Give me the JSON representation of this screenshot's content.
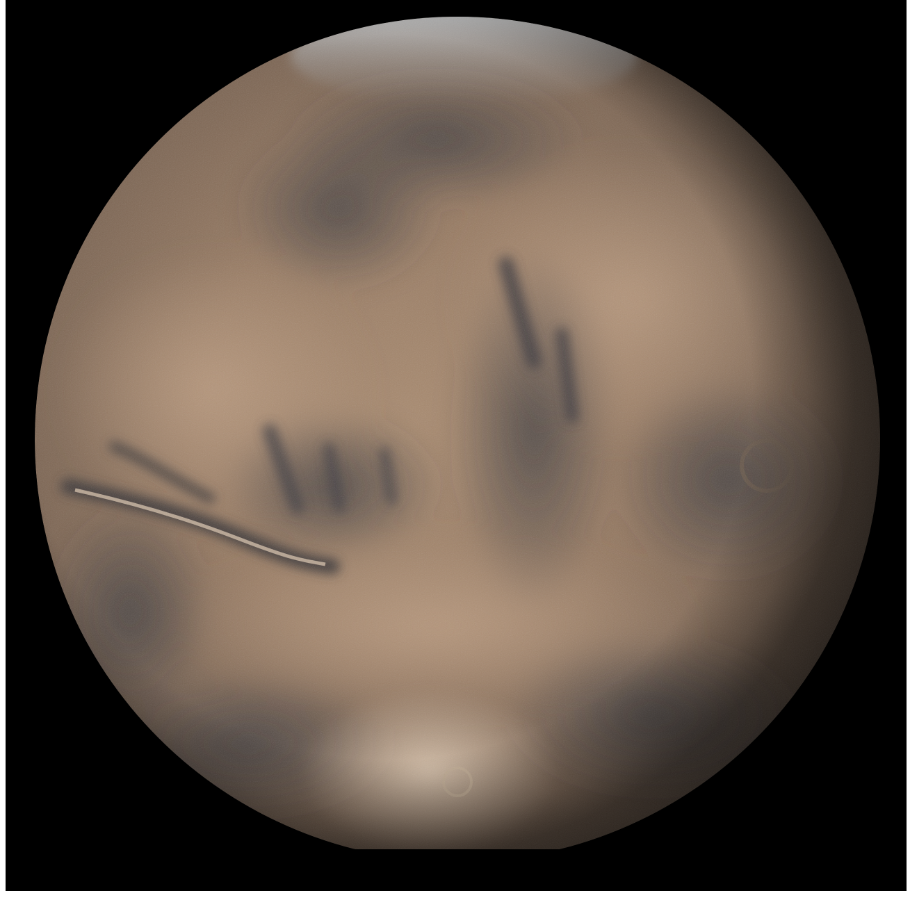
{
  "image": {
    "subject": "planet-mars",
    "background_color": "#000000",
    "colors": {
      "surface_light": "#b49274",
      "surface_mid": "#8d7058",
      "surface_dark": "#4f4136",
      "albedo_dark": "#3d3b3f",
      "polar_cap": "#bfc3c6",
      "canyon_highlight": "#d9c4ad"
    }
  }
}
